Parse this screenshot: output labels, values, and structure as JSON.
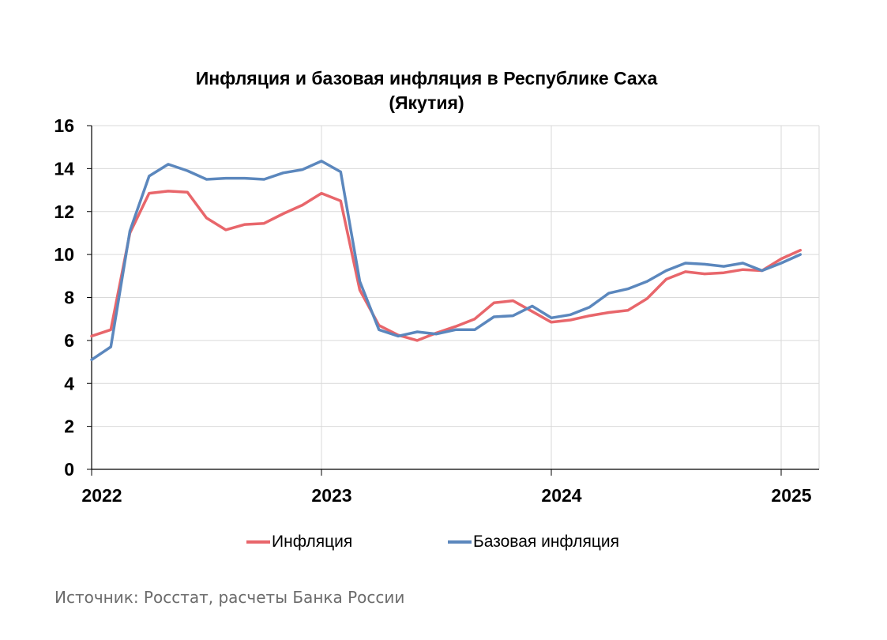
{
  "chart_data": {
    "type": "line",
    "title_line1": "Инфляция и базовая инфляция в Республике Саха",
    "title_line2": "(Якутия)",
    "ylim": [
      0,
      16
    ],
    "y_ticks": [
      0,
      2,
      4,
      6,
      8,
      10,
      12,
      14,
      16
    ],
    "x_tick_labels": [
      "2022",
      "2023",
      "2024",
      "2025"
    ],
    "grid": true,
    "legend_position": "bottom",
    "x": [
      "2022-01",
      "2022-02",
      "2022-03",
      "2022-04",
      "2022-05",
      "2022-06",
      "2022-07",
      "2022-08",
      "2022-09",
      "2022-10",
      "2022-11",
      "2022-12",
      "2023-01",
      "2023-02",
      "2023-03",
      "2023-04",
      "2023-05",
      "2023-06",
      "2023-07",
      "2023-08",
      "2023-09",
      "2023-10",
      "2023-11",
      "2023-12",
      "2024-01",
      "2024-02",
      "2024-03",
      "2024-04",
      "2024-05",
      "2024-06",
      "2024-07",
      "2024-08",
      "2024-09",
      "2024-10",
      "2024-11",
      "2024-12",
      "2025-01",
      "2025-02"
    ],
    "series": [
      {
        "name": "Инфляция",
        "color": "#e8666b",
        "values": [
          6.2,
          6.5,
          11.0,
          12.85,
          12.95,
          12.9,
          11.7,
          11.15,
          11.4,
          11.45,
          11.9,
          12.3,
          12.85,
          12.5,
          8.35,
          6.7,
          6.25,
          6.0,
          6.35,
          6.65,
          7.0,
          7.75,
          7.85,
          7.35,
          6.85,
          6.95,
          7.15,
          7.3,
          7.4,
          7.95,
          8.85,
          9.2,
          9.1,
          9.15,
          9.3,
          9.25,
          9.8,
          10.2
        ]
      },
      {
        "name": "Базовая инфляция",
        "color": "#5b87bd",
        "values": [
          5.1,
          5.7,
          11.1,
          13.65,
          14.2,
          13.9,
          13.5,
          13.55,
          13.55,
          13.5,
          13.8,
          13.95,
          14.35,
          13.85,
          8.75,
          6.5,
          6.2,
          6.4,
          6.3,
          6.5,
          6.5,
          7.1,
          7.15,
          7.6,
          7.05,
          7.2,
          7.55,
          8.2,
          8.4,
          8.75,
          9.25,
          9.6,
          9.55,
          9.45,
          9.6,
          9.25,
          9.6,
          10.0
        ]
      }
    ]
  },
  "source_text": "Источник: Росстат, расчеты Банка России"
}
